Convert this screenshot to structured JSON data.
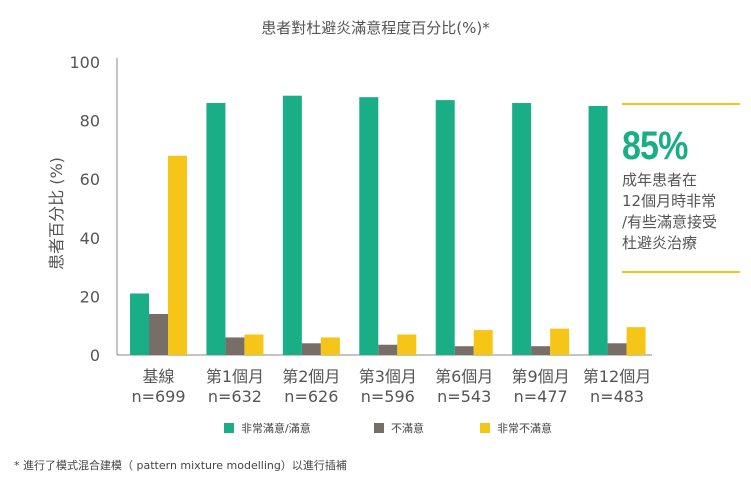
{
  "title": "患者對杜避炎滿意程度百分比(%)*",
  "footnote": "* 進行了模式混合建模（ pattern mixture modelling）以進行插補",
  "callout": {
    "big": "85%",
    "text": "成年患者在\n12個月時非常\n/有些滿意接受\n杜避炎治療"
  },
  "chart_data": {
    "type": "bar",
    "title": "患者對杜避炎滿意程度百分比(%)*",
    "ylabel": "患者百分比 (%)",
    "xlabel": "",
    "ylim": [
      0,
      100
    ],
    "yticks": [
      0,
      20,
      40,
      60,
      80,
      100
    ],
    "categories": [
      {
        "label": "基線",
        "n": "n=699"
      },
      {
        "label": "第1個月",
        "n": "n=632"
      },
      {
        "label": "第2個月",
        "n": "n=626"
      },
      {
        "label": "第3個月",
        "n": "n=596"
      },
      {
        "label": "第6個月",
        "n": "n=543"
      },
      {
        "label": "第9個月",
        "n": "n=477"
      },
      {
        "label": "第12個月",
        "n": "n=483"
      }
    ],
    "series": [
      {
        "name": "非常滿意/滿意",
        "color": "#1aae87",
        "values": [
          21,
          86,
          88.5,
          88,
          87,
          86,
          85
        ]
      },
      {
        "name": "不滿意",
        "color": "#776f67",
        "values": [
          14,
          6,
          4,
          3.5,
          3,
          3,
          4
        ]
      },
      {
        "name": "非常不滿意",
        "color": "#f5c518",
        "values": [
          68,
          7,
          6,
          7,
          8.5,
          9,
          9.5
        ]
      }
    ]
  }
}
